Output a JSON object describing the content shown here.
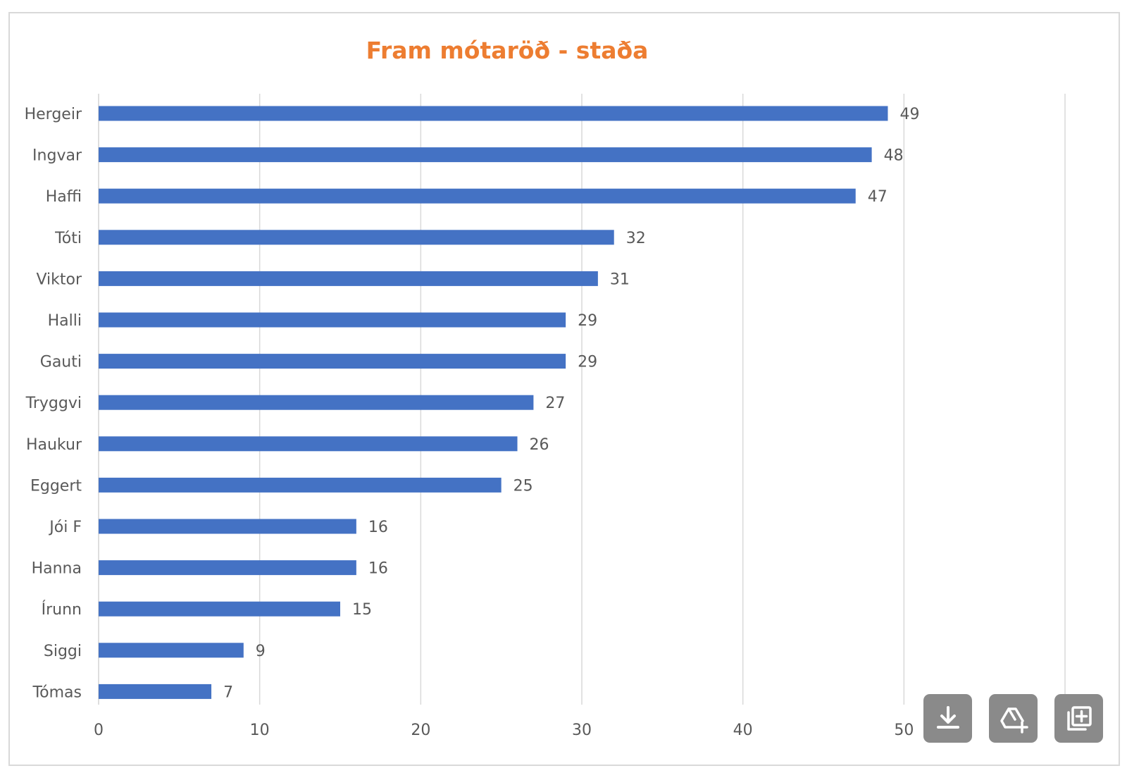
{
  "chart_data": {
    "type": "bar",
    "orientation": "horizontal",
    "title": "Fram mótaröð - staða",
    "xlabel": "",
    "ylabel": "",
    "categories": [
      "Hergeir",
      "Ingvar",
      "Haffi",
      "Tóti",
      "Viktor",
      "Halli",
      "Gauti",
      "Tryggvi",
      "Haukur",
      "Eggert",
      "Jói F",
      "Hanna",
      "Írunn",
      "Siggi",
      "Tómas"
    ],
    "values": [
      49,
      48,
      47,
      32,
      31,
      29,
      29,
      27,
      26,
      25,
      16,
      16,
      15,
      9,
      7
    ],
    "xlim": [
      0,
      60
    ],
    "xticks": [
      "0",
      "10",
      "20",
      "30",
      "40",
      "50",
      "60"
    ],
    "grid": true,
    "data_labels": true,
    "bar_color": "#4472c4",
    "title_color": "#ed7d31"
  },
  "toolbar": {
    "buttons": [
      {
        "icon": "download-icon"
      },
      {
        "icon": "drive-add-icon"
      },
      {
        "icon": "add-to-collection-icon"
      }
    ]
  }
}
